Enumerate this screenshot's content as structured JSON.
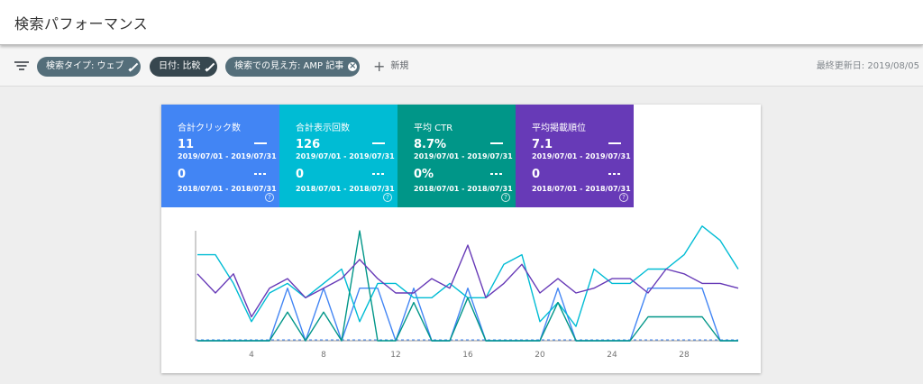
{
  "header": {
    "title": "検索パフォーマンス"
  },
  "filters": {
    "chips": [
      {
        "label": "検索タイプ: ウェブ",
        "icon": "pencil-icon"
      },
      {
        "label": "日付: 比較",
        "icon": "pencil-icon"
      },
      {
        "label": "検索での見え方: AMP 記事",
        "icon": "close-icon"
      }
    ],
    "add_label": "新規",
    "last_updated": "最終更新日: 2019/08/05"
  },
  "metrics": [
    {
      "title": "合計クリック数",
      "value": "11",
      "range": "2019/07/01 - 2019/07/31",
      "compare_value": "0",
      "compare_range": "2018/07/01 - 2018/07/31",
      "color": "#4285f4"
    },
    {
      "title": "合計表示回数",
      "value": "126",
      "range": "2019/07/01 - 2019/07/31",
      "compare_value": "0",
      "compare_range": "2018/07/01 - 2018/07/31",
      "color": "#00bcd4"
    },
    {
      "title": "平均 CTR",
      "value": "8.7%",
      "range": "2019/07/01 - 2019/07/31",
      "compare_value": "0%",
      "compare_range": "2018/07/01 - 2018/07/31",
      "color": "#009688"
    },
    {
      "title": "平均掲載順位",
      "value": "7.1",
      "range": "2019/07/01 - 2019/07/31",
      "compare_value": "0",
      "compare_range": "2018/07/01 - 2018/07/31",
      "color": "#673ab7"
    }
  ],
  "chart_data": {
    "type": "line",
    "x": [
      1,
      2,
      3,
      4,
      5,
      6,
      7,
      8,
      9,
      10,
      11,
      12,
      13,
      14,
      15,
      16,
      17,
      18,
      19,
      20,
      21,
      22,
      23,
      24,
      25,
      26,
      27,
      28,
      29,
      30,
      31
    ],
    "xticks": [
      4,
      8,
      12,
      16,
      20,
      24,
      28
    ],
    "ylim": [
      0,
      1
    ],
    "series": [
      {
        "color": "#4285f4",
        "values": [
          0,
          0,
          0,
          0,
          0,
          0.55,
          0,
          0.55,
          0,
          0.55,
          0.55,
          0,
          0.55,
          0,
          0,
          0.55,
          0,
          0,
          0,
          0,
          0.55,
          0,
          0,
          0,
          0,
          0.55,
          0.55,
          0.55,
          0.55,
          0,
          0
        ]
      },
      {
        "color": "#00bcd4",
        "values": [
          0.9,
          0.9,
          0.6,
          0.2,
          0.5,
          0.6,
          0.45,
          0.6,
          0.75,
          0.2,
          0.6,
          0.6,
          0.45,
          0.45,
          0.6,
          0.45,
          0.45,
          0.8,
          0.9,
          0.2,
          0.4,
          0.15,
          0.75,
          0.6,
          0.6,
          0.75,
          0.75,
          0.9,
          1.2,
          1.05,
          0.75
        ]
      },
      {
        "color": "#009688",
        "values": [
          0,
          0,
          0,
          0,
          0,
          0.3,
          0,
          0.3,
          0,
          1.15,
          0,
          0,
          0.4,
          0,
          0,
          0.45,
          0,
          0,
          0,
          0,
          0.4,
          0,
          0,
          0,
          0,
          0.25,
          0.25,
          0.25,
          0.25,
          0,
          0
        ]
      },
      {
        "color": "#673ab7",
        "values": [
          0.7,
          0.5,
          0.7,
          0.25,
          0.55,
          0.65,
          0.45,
          0.55,
          0.65,
          0.85,
          0.65,
          0.5,
          0.5,
          0.65,
          0.55,
          1.0,
          0.45,
          0.6,
          0.8,
          0.5,
          0.65,
          0.5,
          0.55,
          0.65,
          0.65,
          0.5,
          0.75,
          0.7,
          0.6,
          0.6,
          0.55
        ]
      }
    ]
  }
}
